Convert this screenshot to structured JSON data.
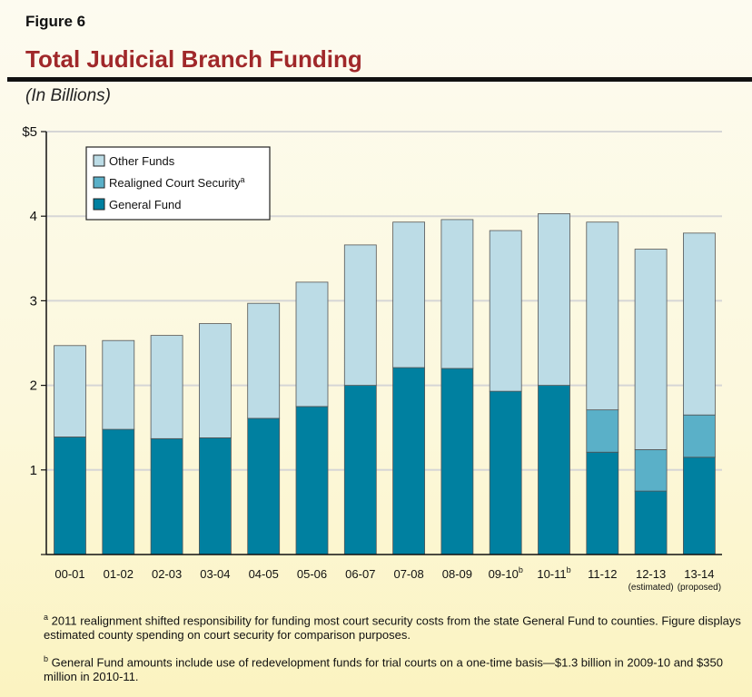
{
  "figure_label": "Figure 6",
  "chart_data": {
    "type": "bar",
    "stacked": true,
    "title": "Total Judicial Branch Funding",
    "subtitle": "(In Billions)",
    "categories": [
      "00-01",
      "01-02",
      "02-03",
      "03-04",
      "04-05",
      "05-06",
      "06-07",
      "07-08",
      "08-09",
      "09-10",
      "10-11",
      "11-12",
      "12-13",
      "13-14"
    ],
    "category_superscripts": [
      "",
      "",
      "",
      "",
      "",
      "",
      "",
      "",
      "",
      "b",
      "b",
      "",
      "",
      ""
    ],
    "category_sublabels": [
      "",
      "",
      "",
      "",
      "",
      "",
      "",
      "",
      "",
      "",
      "",
      "",
      "(estimated)",
      "(proposed)"
    ],
    "series": [
      {
        "name": "General Fund",
        "color": "#0080a0",
        "values": [
          1.39,
          1.48,
          1.37,
          1.38,
          1.61,
          1.75,
          2.0,
          2.21,
          2.2,
          1.93,
          2.0,
          1.21,
          0.75,
          1.15
        ]
      },
      {
        "name": "Realigned Court Security",
        "superscript": "a",
        "color": "#5ab0c8",
        "values": [
          0,
          0,
          0,
          0,
          0,
          0,
          0,
          0,
          0,
          0,
          0,
          0.5,
          0.49,
          0.5
        ]
      },
      {
        "name": "Other Funds",
        "color": "#bcdce6",
        "values": [
          1.08,
          1.05,
          1.22,
          1.35,
          1.36,
          1.47,
          1.66,
          1.72,
          1.76,
          1.9,
          2.03,
          2.22,
          2.37,
          2.15
        ]
      }
    ],
    "ylim": [
      0,
      5
    ],
    "yticks": [
      "",
      "1",
      "2",
      "3",
      "4",
      "$5"
    ],
    "grid": true,
    "legend_position": "top-left"
  },
  "notes": [
    {
      "mark": "a",
      "text": "2011 realignment shifted responsibility for funding most court security costs from the state General Fund to counties. Figure displays estimated county spending on court security for comparison purposes."
    },
    {
      "mark": "b",
      "text": "General Fund amounts include use of redevelopment funds for trial courts on a one-time basis—$1.3 billion in 2009-10 and $350 million in 2010-11."
    }
  ]
}
